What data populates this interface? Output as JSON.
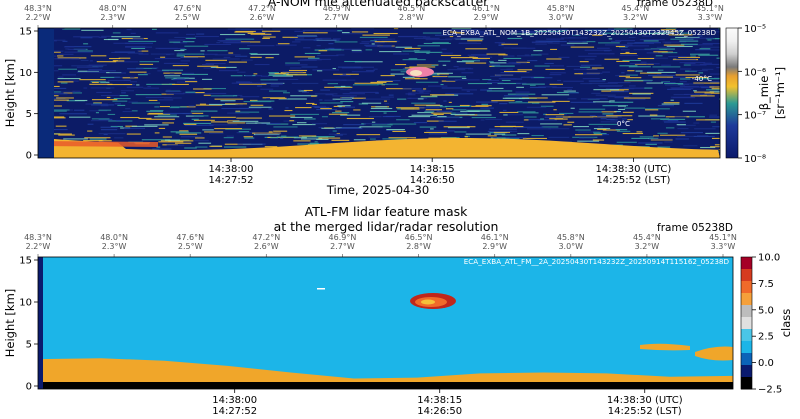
{
  "colors": {
    "ocean": "#0a1e63",
    "mieDark": "#141a6e",
    "mieMid": "#2a8f8f",
    "mieHigh": "#f2c12e",
    "cloud": "#e8842a",
    "fmClear": "#1cb5e8",
    "fmSurface": "#f0a62a",
    "fmGround": "#000000",
    "fmCloudRed": "#c0271b"
  },
  "top": {
    "title": "A-NOM mie attenuated backscatter",
    "frame": "frame 05238D",
    "product_id": "ECA_EXBA_ATL_NOM_1B_20250430T143232Z_20250430T232945Z_05238D",
    "time_label": "Time, 2025-04-30",
    "ylabel": "Height [km]",
    "cbar_label": "β_mie",
    "cbar_unit": "[sr⁻¹m⁻¹]",
    "cbar_ticks": [
      "10⁻⁵",
      "10⁻⁶",
      "10⁻⁷",
      "10⁻⁸"
    ],
    "annotations": {
      "minus40": "-40°C",
      "zero": "0°C"
    }
  },
  "bottom": {
    "title_line1": "ATL-FM lidar feature mask",
    "title_line2": "at the merged lidar/radar resolution",
    "frame": "frame 05238D",
    "product_id": "ECA_EXBA_ATL_FM__2A_20250430T143232Z_20250914T115162_05238D",
    "ylabel": "Height [km]",
    "cbar_label": "class"
  },
  "chart_data": [
    {
      "type": "heatmap",
      "title": "A-NOM mie attenuated backscatter",
      "xlabel": "Time, 2025-04-30",
      "ylabel": "Height [km]",
      "ylim": [
        0,
        15
      ],
      "yticks": [
        0,
        5,
        10,
        15
      ],
      "xticks": [
        {
          "utc": "14:38:00",
          "lst": "14:27:52"
        },
        {
          "utc": "14:38:15",
          "lst": "14:26:50"
        },
        {
          "utc": "14:38:30 (UTC)",
          "lst": "14:25:52 (LST)"
        }
      ],
      "geo_ticks": [
        {
          "lat": "48.3°N",
          "lon": "2.2°W"
        },
        {
          "lat": "48.0°N",
          "lon": "2.3°W"
        },
        {
          "lat": "47.6°N",
          "lon": "2.5°W"
        },
        {
          "lat": "47.2°N",
          "lon": "2.6°W"
        },
        {
          "lat": "46.9°N",
          "lon": "2.7°W"
        },
        {
          "lat": "46.5°N",
          "lon": "2.8°W"
        },
        {
          "lat": "46.1°N",
          "lon": "2.9°W"
        },
        {
          "lat": "45.8°N",
          "lon": "3.0°W"
        },
        {
          "lat": "45.4°N",
          "lon": "3.2°W"
        },
        {
          "lat": "45.1°N",
          "lon": "3.3°W"
        }
      ],
      "colorbar": {
        "label": "β_mie [sr⁻¹m⁻¹]",
        "scale": "log",
        "range": [
          1e-08,
          1e-05
        ]
      },
      "features": {
        "surface_layer_km": [
          0,
          2
        ],
        "cloud": {
          "center_x_fraction": 0.55,
          "height_km": 10
        }
      }
    },
    {
      "type": "heatmap",
      "title": "ATL-FM lidar feature mask at the merged lidar/radar resolution",
      "ylabel": "Height [km]",
      "ylim": [
        0,
        15
      ],
      "yticks": [
        0,
        5,
        10,
        15
      ],
      "xticks": [
        {
          "utc": "14:38:00",
          "lst": "14:27:52"
        },
        {
          "utc": "14:38:15",
          "lst": "14:26:50"
        },
        {
          "utc": "14:38:30 (UTC)",
          "lst": "14:25:52 (LST)"
        }
      ],
      "colorbar": {
        "label": "class",
        "range": [
          -2.5,
          10
        ],
        "ticks": [
          10.0,
          7.5,
          5.0,
          2.5,
          0.0,
          -2.5
        ],
        "tick_labels": [
          "10.0",
          "7.5",
          "5.0",
          "2.5",
          "0.0",
          "−2.5"
        ],
        "colors": [
          "#a50026",
          "#d63b1f",
          "#f06a2a",
          "#f5a03a",
          "#bdbdbd",
          "#e0e0e0",
          "#4ac6e8",
          "#1cb5e8",
          "#0b63b8",
          "#0a1a6e",
          "#000000"
        ]
      },
      "features": {
        "boundary_layer_top_km": [
          3.2,
          3.3,
          3.0,
          2.4,
          1.6,
          0.9,
          1.0,
          1.5,
          1.6,
          1.5,
          1.1,
          1.2
        ],
        "cloud": {
          "center_x_fraction": 0.55,
          "height_km": 10
        },
        "right_low_layers_km": [
          4.2,
          5.2
        ]
      }
    }
  ]
}
